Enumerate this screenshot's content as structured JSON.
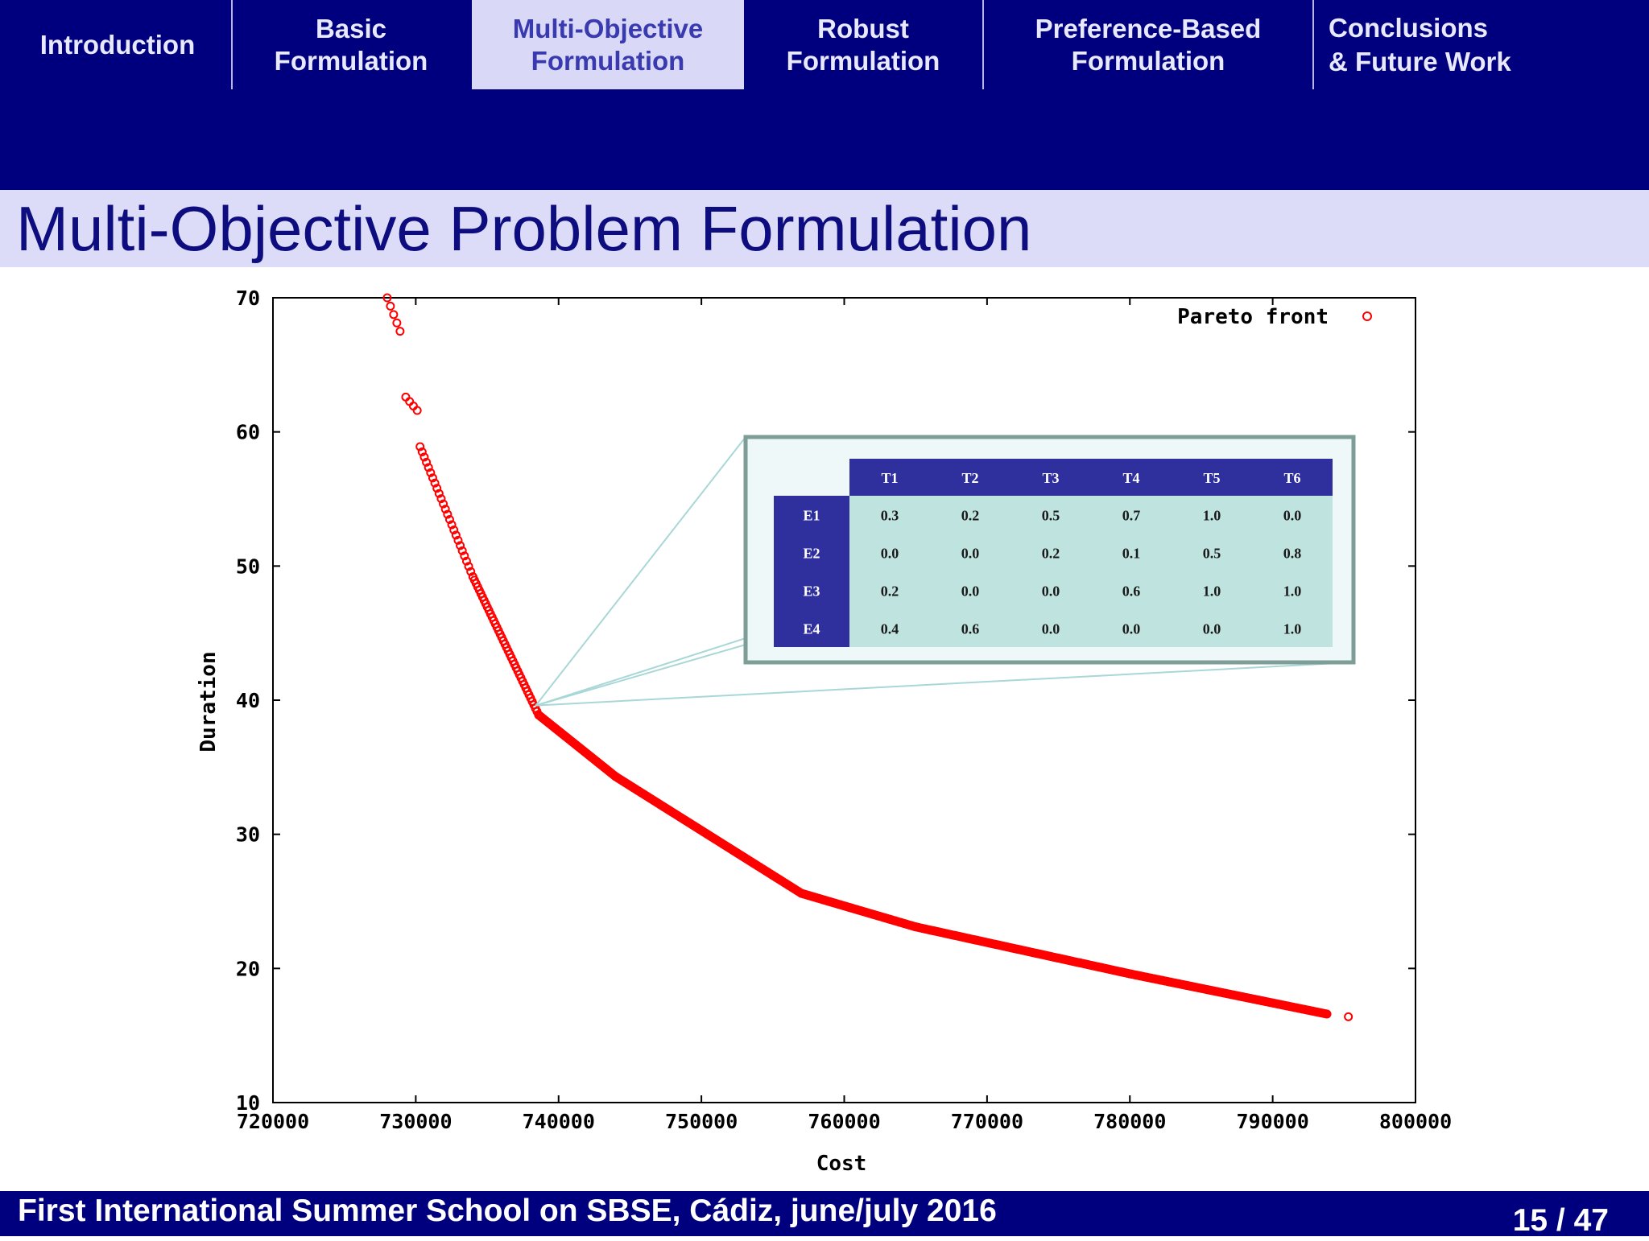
{
  "nav": {
    "tabs": [
      {
        "label": "Introduction",
        "active": false
      },
      {
        "label": "Basic\nFormulation",
        "active": false
      },
      {
        "label": "Multi-Objective\nFormulation",
        "active": true
      },
      {
        "label": "Robust\nFormulation",
        "active": false
      },
      {
        "label": "Preference-Based\nFormulation",
        "active": false
      },
      {
        "label": "Conclusions\n& Future Work",
        "active": false
      }
    ]
  },
  "slide": {
    "title": "Multi-Objective Problem Formulation"
  },
  "chart_data": {
    "type": "scatter",
    "xlabel": "Cost",
    "ylabel": "Duration",
    "xlim": [
      720000,
      800000
    ],
    "ylim": [
      10,
      70
    ],
    "xticks": [
      720000,
      730000,
      740000,
      750000,
      760000,
      770000,
      780000,
      790000,
      800000
    ],
    "yticks": [
      10,
      20,
      30,
      40,
      50,
      60,
      70
    ],
    "xtick_labels": [
      "720000",
      "730000",
      "740000",
      "750000",
      "760000",
      "770000",
      "780000",
      "790000",
      "800000"
    ],
    "ytick_labels": [
      "10",
      "20",
      "30",
      "40",
      "50",
      "60",
      "70"
    ],
    "legend": {
      "position": "top-right",
      "entries": [
        "Pareto front"
      ]
    },
    "series": [
      {
        "name": "Pareto front",
        "color": "#ff0000",
        "marker": "circle-hollow",
        "segments": [
          {
            "x": [
              728000,
              728900
            ],
            "y": [
              70.0,
              67.5
            ],
            "n": 5
          },
          {
            "x": [
              729300,
              730100
            ],
            "y": [
              62.6,
              61.6
            ],
            "n": 4
          },
          {
            "x": [
              730300,
              734000
            ],
            "y": [
              58.9,
              49.2
            ],
            "n": 26
          },
          {
            "x": [
              734000,
              738600
            ],
            "y": [
              49.2,
              38.9
            ],
            "n": 42
          },
          {
            "x": [
              738600,
              744000
            ],
            "y": [
              38.9,
              34.3
            ],
            "n": 60
          },
          {
            "x": [
              744000,
              757000
            ],
            "y": [
              34.3,
              25.6
            ],
            "n": 140
          },
          {
            "x": [
              757000,
              765000
            ],
            "y": [
              25.6,
              23.1
            ],
            "n": 90
          },
          {
            "x": [
              765000,
              780000
            ],
            "y": [
              23.1,
              19.6
            ],
            "n": 160
          },
          {
            "x": [
              780000,
              793800
            ],
            "y": [
              19.6,
              16.6
            ],
            "n": 150
          },
          {
            "x": [
              795300,
              795300
            ],
            "y": [
              16.4,
              16.4
            ],
            "n": 1
          }
        ]
      }
    ],
    "annotations": [
      {
        "type": "table",
        "anchor": {
          "x": 738400,
          "y": 39.6
        },
        "columns": [
          "T1",
          "T2",
          "T3",
          "T4",
          "T5",
          "T6"
        ],
        "rows": [
          {
            "label": "E1",
            "values": [
              "0.3",
              "0.2",
              "0.5",
              "0.7",
              "1.0",
              "0.0"
            ]
          },
          {
            "label": "E2",
            "values": [
              "0.0",
              "0.0",
              "0.2",
              "0.1",
              "0.5",
              "0.8"
            ]
          },
          {
            "label": "E3",
            "values": [
              "0.2",
              "0.0",
              "0.0",
              "0.6",
              "1.0",
              "1.0"
            ]
          },
          {
            "label": "E4",
            "values": [
              "0.4",
              "0.6",
              "0.0",
              "0.0",
              "0.0",
              "1.0"
            ]
          }
        ]
      }
    ]
  },
  "footer": {
    "text": "First International Summer School on SBSE, Cádiz, june/july 2016",
    "page_current": "15",
    "page_total": "47"
  }
}
